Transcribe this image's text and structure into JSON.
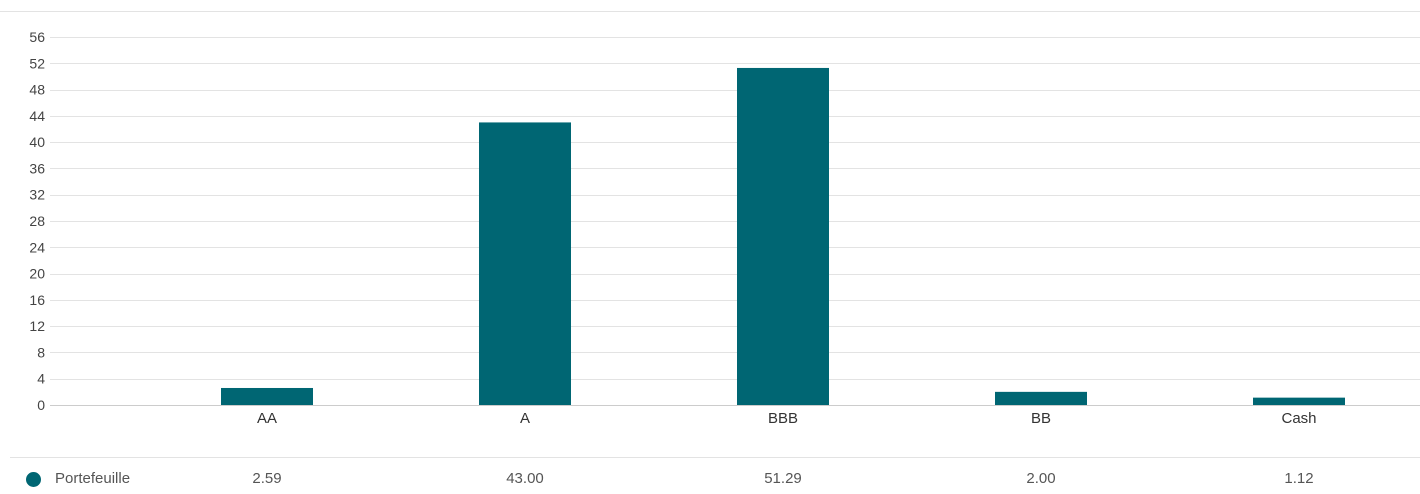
{
  "chart_data": {
    "type": "bar",
    "title": "",
    "xlabel": "",
    "ylabel": "",
    "categories": [
      "AA",
      "A",
      "BBB",
      "BB",
      "Cash"
    ],
    "series": [
      {
        "name": "Portefeuille",
        "values": [
          2.59,
          43.0,
          51.29,
          2.0,
          1.12
        ],
        "color": "#006673"
      }
    ],
    "value_labels": [
      "2.59",
      "43.00",
      "51.29",
      "2.00",
      "1.12"
    ],
    "ylim": [
      0,
      56
    ],
    "yticks": [
      0,
      4,
      8,
      12,
      16,
      20,
      24,
      28,
      32,
      36,
      40,
      44,
      48,
      52,
      56
    ],
    "grid": true,
    "legend_position": "bottom-left"
  },
  "colors": {
    "bar": "#006673",
    "grid": "#e3e3e3",
    "axis": "#cccccc"
  }
}
